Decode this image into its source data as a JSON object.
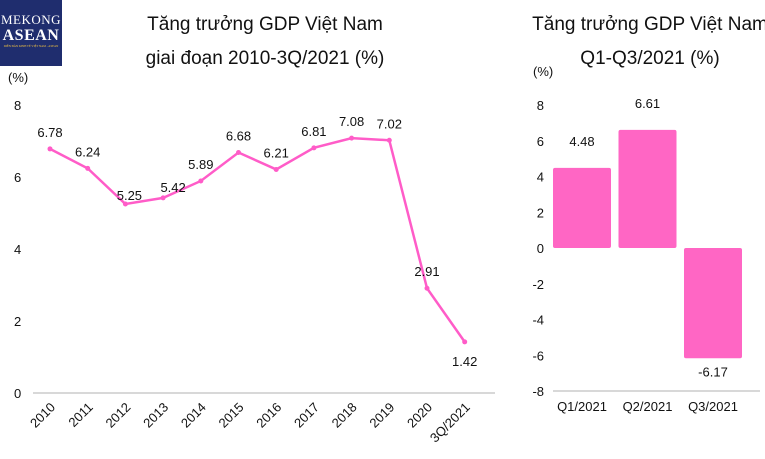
{
  "logo": {
    "line1": "MEKONG",
    "line2": "ASEAN",
    "line3": "DIỄN ĐÀN KINH TẾ VIỆT NAM - ASEAN"
  },
  "chart_data": [
    {
      "type": "line",
      "title": "Tăng trưởng GDP Việt Nam",
      "subtitle": "giai đoạn 2010-3Q/2021 (%)",
      "ylabel": "(%)",
      "categories": [
        "2010",
        "2011",
        "2012",
        "2013",
        "2014",
        "2015",
        "2016",
        "2017",
        "2018",
        "2019",
        "2020",
        "3Q/2021"
      ],
      "values": [
        6.78,
        6.24,
        5.25,
        5.42,
        5.89,
        6.68,
        6.21,
        6.81,
        7.08,
        7.02,
        2.91,
        1.42
      ],
      "labels": [
        "6.78",
        "6.24",
        "5.25",
        "5.42",
        "5.89",
        "6.68",
        "6.21",
        "6.81",
        "7.08",
        "7.02",
        "2.91",
        "1.42"
      ],
      "ylim": [
        0,
        8
      ],
      "yticks": [
        "0",
        "2",
        "4",
        "6",
        "8"
      ],
      "grid": false,
      "color": "#ff5cc8"
    },
    {
      "type": "bar",
      "title": "Tăng trưởng GDP Việt Nam",
      "subtitle": "Q1-Q3/2021 (%)",
      "ylabel": "(%)",
      "categories": [
        "Q1/2021",
        "Q2/2021",
        "Q3/2021"
      ],
      "values": [
        4.48,
        6.61,
        -6.17
      ],
      "labels": [
        "4.48",
        "6.61",
        "-6.17"
      ],
      "ylim": [
        -8,
        8
      ],
      "yticks": [
        "-8",
        "-6",
        "-4",
        "-2",
        "0",
        "2",
        "4",
        "6",
        "8"
      ],
      "grid": false,
      "color": "#ff66c4"
    }
  ]
}
